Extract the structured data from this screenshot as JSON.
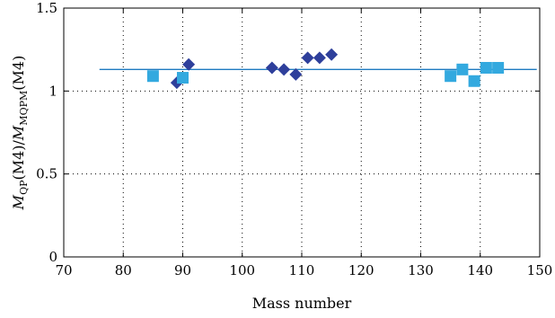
{
  "chart_data": {
    "type": "scatter",
    "title": "",
    "xlabel": "Mass number",
    "ylabel": "M_QP(M4)/M_MQPM(M4)",
    "ylabel_parts": {
      "m1": "M",
      "sub1": "QP",
      "mid": "(M4)/",
      "m2": "M",
      "sub2": "MQPM",
      "tail": "(M4)"
    },
    "xlim": [
      70,
      150
    ],
    "ylim": [
      0,
      1.5
    ],
    "x_ticks": [
      "70",
      "80",
      "90",
      "100",
      "110",
      "120",
      "130",
      "140",
      "150"
    ],
    "y_ticks": [
      "0",
      "0.5",
      "1",
      "1.5"
    ],
    "grid": true,
    "series": [
      {
        "marker": "diamond",
        "color": "#2e3f9b",
        "points": [
          [
            89,
            1.05
          ],
          [
            91,
            1.16
          ],
          [
            105,
            1.14
          ],
          [
            107,
            1.13
          ],
          [
            109,
            1.1
          ],
          [
            111,
            1.2
          ],
          [
            113,
            1.2
          ],
          [
            115,
            1.22
          ]
        ]
      },
      {
        "marker": "square",
        "color": "#33a9df",
        "points": [
          [
            85,
            1.09
          ],
          [
            90,
            1.08
          ],
          [
            135,
            1.09
          ],
          [
            137,
            1.13
          ],
          [
            139,
            1.06
          ],
          [
            141,
            1.14
          ],
          [
            143,
            1.14
          ]
        ]
      }
    ],
    "reference_line": {
      "color": "#1f7bc0",
      "y": 1.13,
      "x_range": [
        76,
        149.5
      ]
    }
  }
}
